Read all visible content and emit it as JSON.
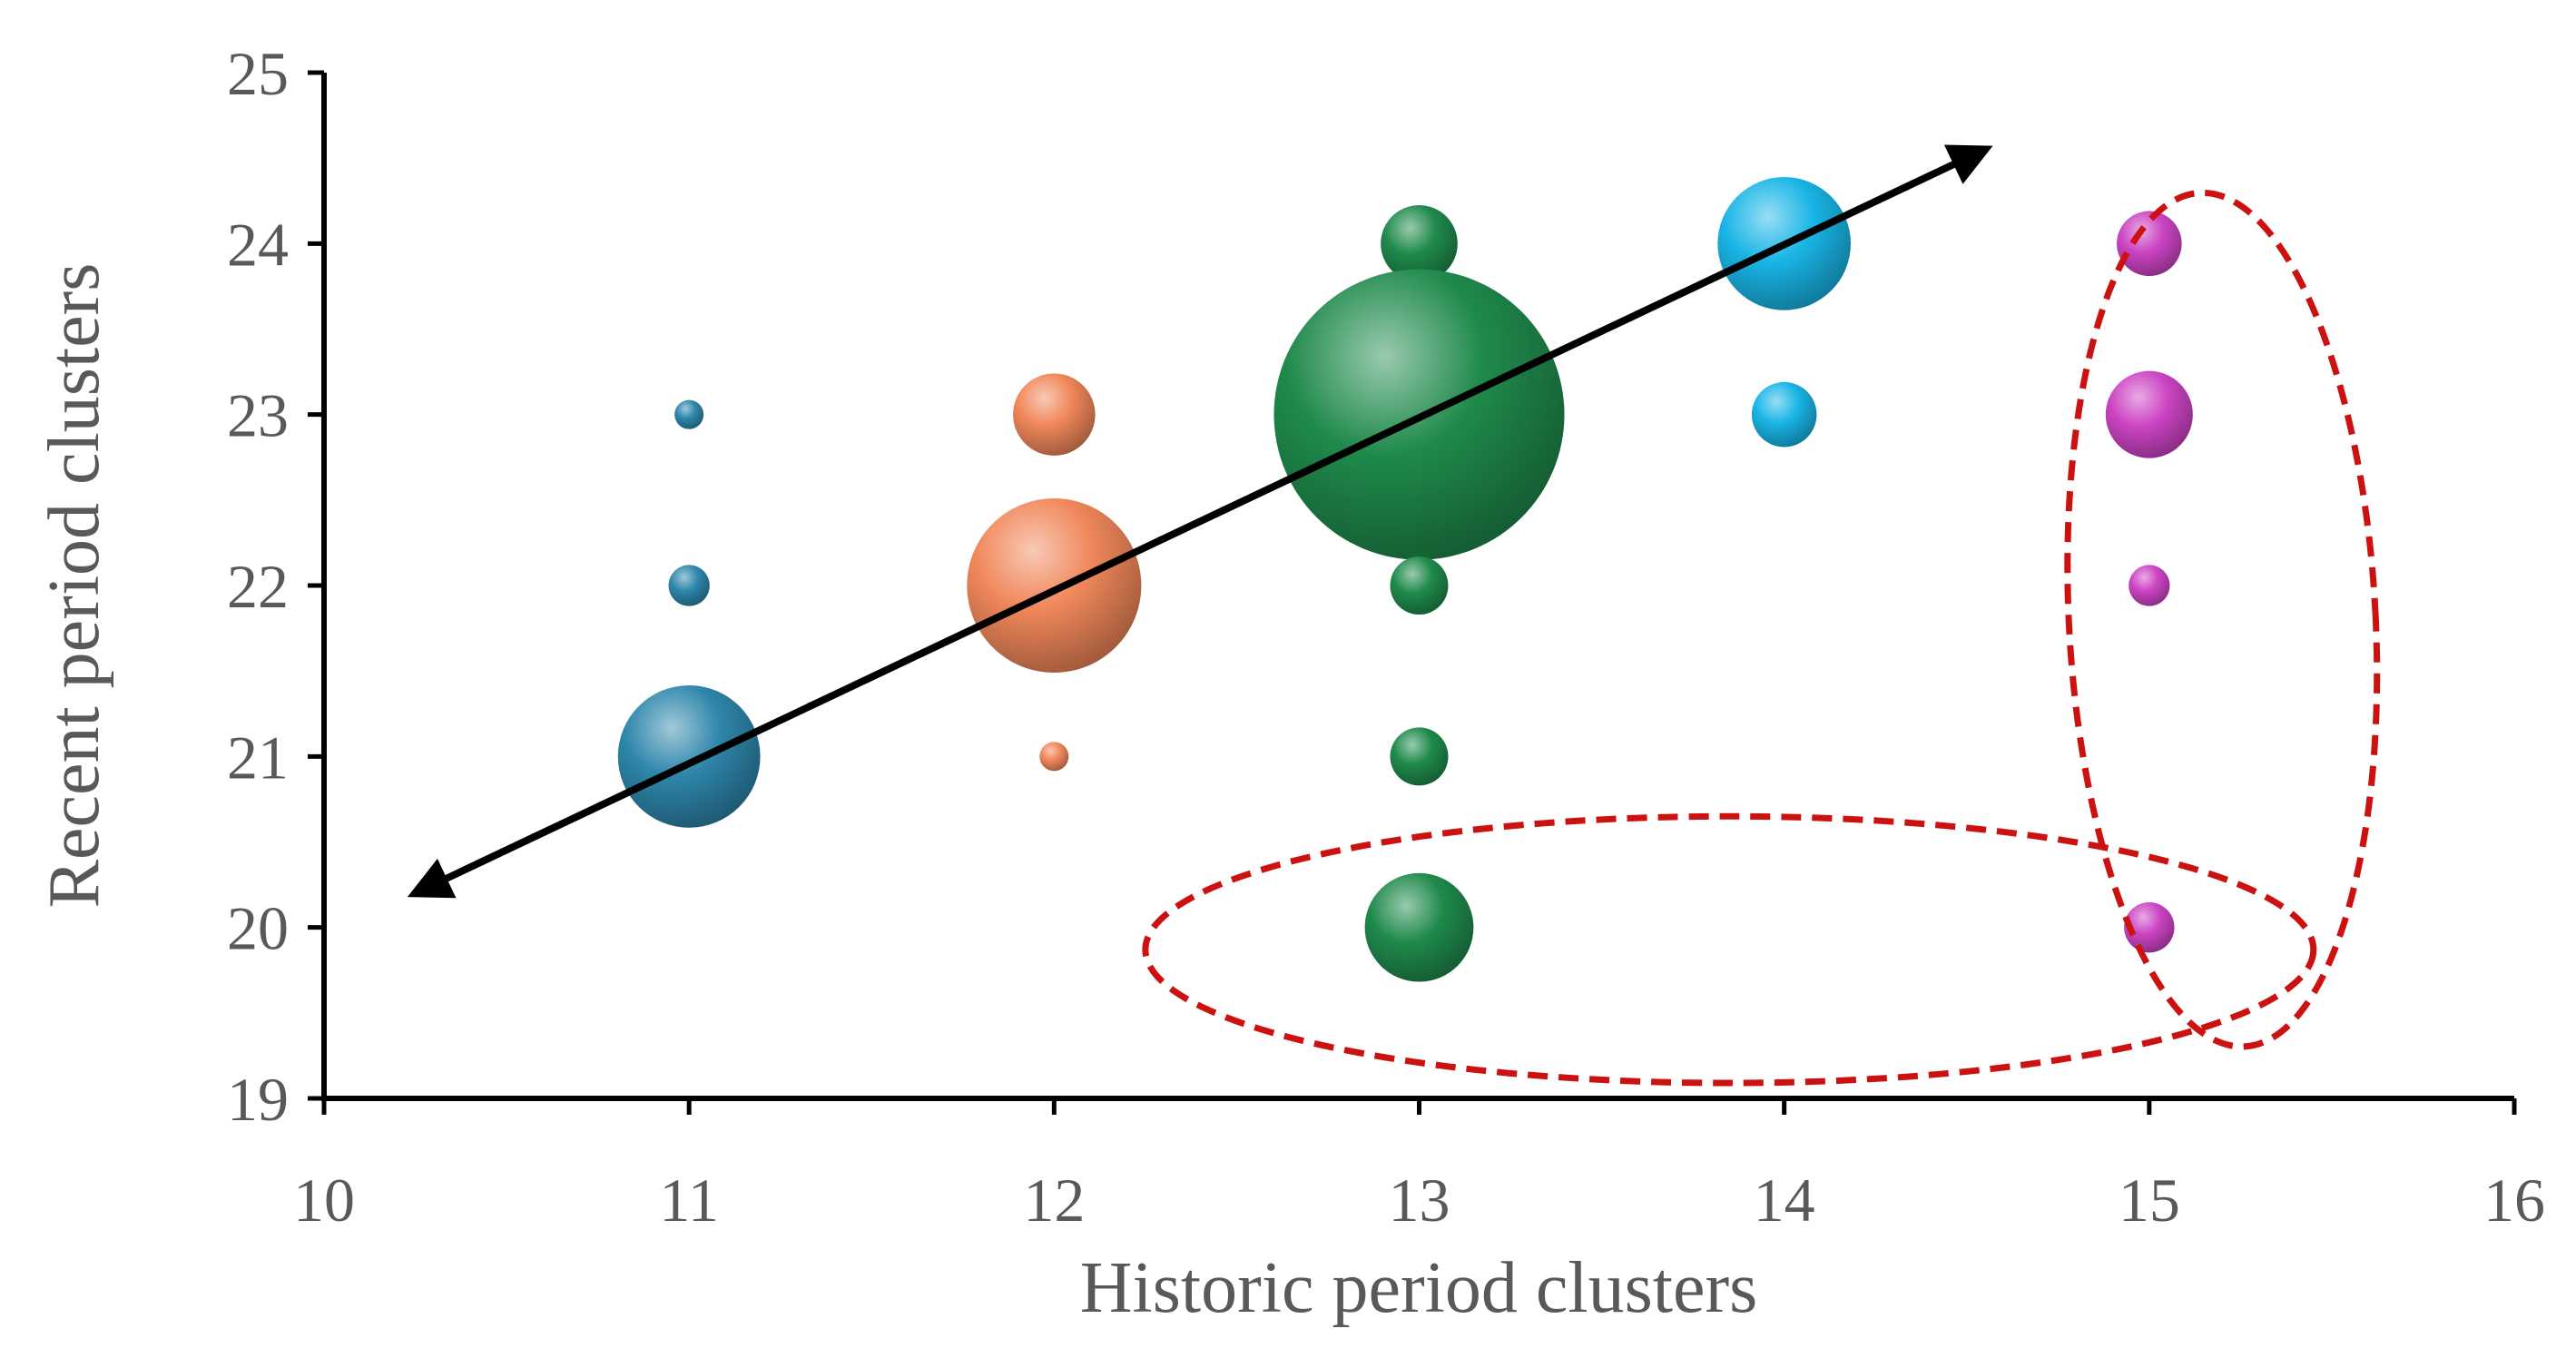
{
  "chart_data": {
    "type": "bubble",
    "xlabel": "Historic period clusters",
    "ylabel": "Recent period clusters",
    "xlim": [
      10,
      16
    ],
    "ylim": [
      19,
      25
    ],
    "xticks": [
      10,
      11,
      12,
      13,
      14,
      15,
      16
    ],
    "yticks": [
      19,
      20,
      21,
      22,
      23,
      24,
      25
    ],
    "grid": false,
    "series": [
      {
        "color": "#2e86ab",
        "points": [
          {
            "x": 11,
            "y": 23,
            "size": 1
          },
          {
            "x": 11,
            "y": 22,
            "size": 2
          },
          {
            "x": 11,
            "y": 21,
            "size": 24
          }
        ]
      },
      {
        "color": "#f0875a",
        "points": [
          {
            "x": 12,
            "y": 23,
            "size": 8
          },
          {
            "x": 12,
            "y": 22,
            "size": 36
          },
          {
            "x": 12,
            "y": 21,
            "size": 1
          }
        ]
      },
      {
        "color": "#1f8a4c",
        "points": [
          {
            "x": 13,
            "y": 24,
            "size": 7
          },
          {
            "x": 13,
            "y": 23,
            "size": 100
          },
          {
            "x": 13,
            "y": 22,
            "size": 4
          },
          {
            "x": 13,
            "y": 21,
            "size": 4
          },
          {
            "x": 13,
            "y": 20,
            "size": 14
          }
        ]
      },
      {
        "color": "#19b5e6",
        "points": [
          {
            "x": 14,
            "y": 24,
            "size": 21
          },
          {
            "x": 14,
            "y": 23,
            "size": 5
          }
        ]
      },
      {
        "color": "#cc44c4",
        "points": [
          {
            "x": 15,
            "y": 24,
            "size": 5
          },
          {
            "x": 15,
            "y": 23,
            "size": 9
          },
          {
            "x": 15,
            "y": 22,
            "size": 2
          },
          {
            "x": 15,
            "y": 20,
            "size": 3
          }
        ]
      }
    ],
    "trend_arrow": {
      "from": [
        10.25,
        20.2
      ],
      "to": [
        14.55,
        24.55
      ],
      "color": "#000000",
      "double_headed": true
    },
    "highlight_ellipses": [
      {
        "cx": 15.2,
        "cy": 21.8,
        "rx": 0.42,
        "ry": 2.5,
        "rotation": -3,
        "color": "#cc1111",
        "dashed": true
      },
      {
        "cx": 13.85,
        "cy": 19.87,
        "rx": 1.6,
        "ry": 0.78,
        "rotation": 0,
        "color": "#cc1111",
        "dashed": true
      }
    ]
  }
}
